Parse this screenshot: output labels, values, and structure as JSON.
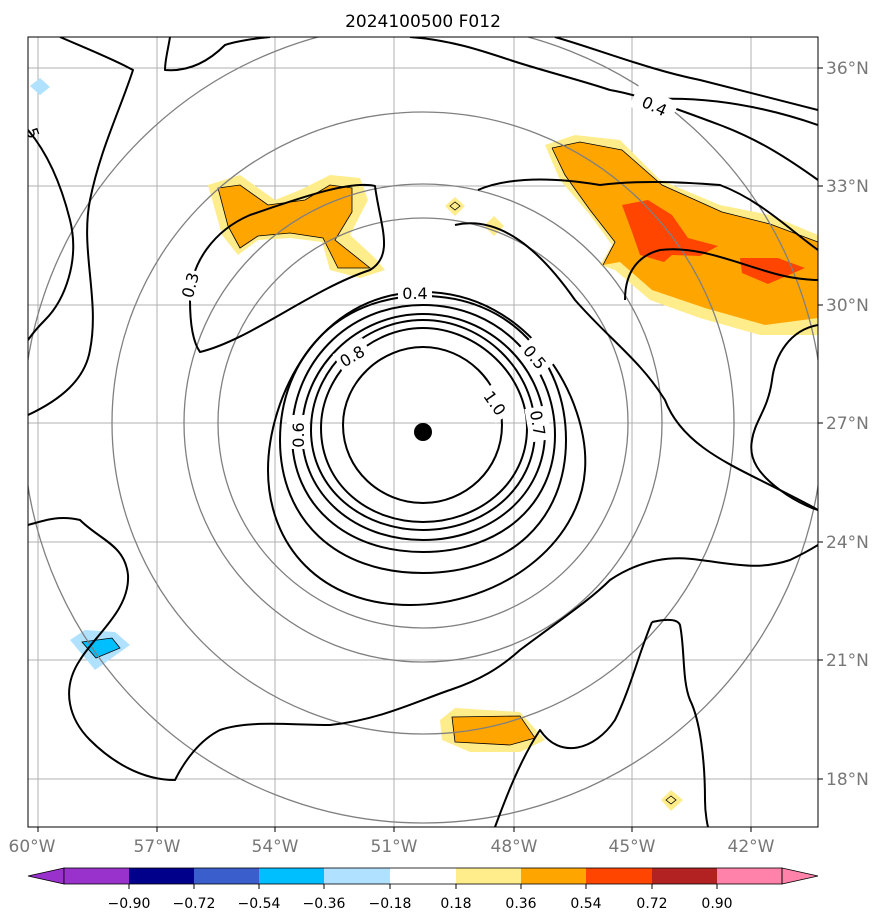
{
  "figure": {
    "title": "2024100500 F012"
  },
  "map": {
    "lon_labels": [
      "60°W",
      "57°W",
      "54°W",
      "51°W",
      "48°W",
      "45°W",
      "42°W"
    ],
    "lat_labels": [
      "36°N",
      "33°N",
      "30°N",
      "27°N",
      "24°N",
      "21°N",
      "18°N"
    ],
    "center_marker": "storm-center",
    "range_ring_color": "#808080",
    "grid_color": "#b0b0b0",
    "contour_labels": [
      "0.4",
      "0.3",
      "0.4",
      "0.8",
      "0.5",
      "1.0",
      "0.7",
      "0.6",
      "5"
    ]
  },
  "colorbar": {
    "ticks": [
      "−0.90",
      "−0.72",
      "−0.54",
      "−0.36",
      "−0.18",
      "0.18",
      "0.36",
      "0.54",
      "0.72",
      "0.90"
    ],
    "colors": [
      "#9932cc",
      "#00008b",
      "#3a5fcd",
      "#00bfff",
      "#b0e2ff",
      "#ffffff",
      "#ffec8b",
      "#ffa500",
      "#ff4500",
      "#b22222",
      "#ff82ab"
    ]
  }
}
